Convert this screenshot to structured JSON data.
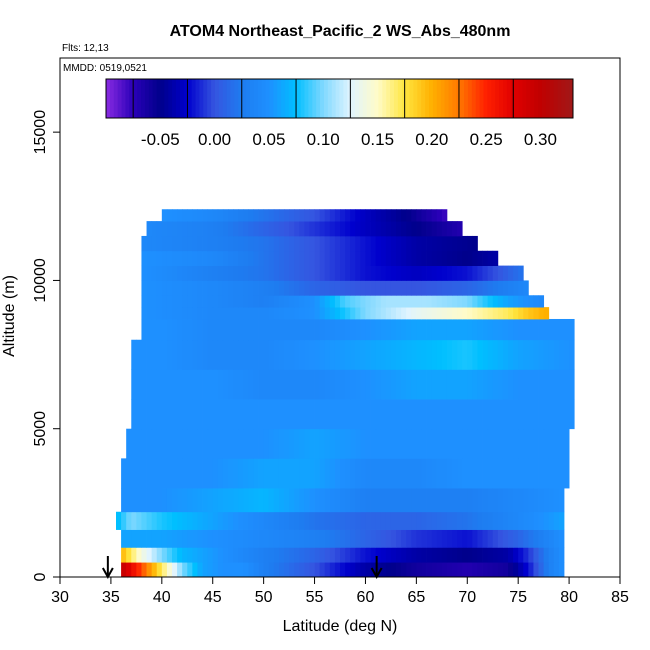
{
  "chart_data": {
    "type": "heatmap",
    "title": "ATOM4 Northeast_Pacific_2 WS_Abs_480nm",
    "subtitle_flights": "Flts: 12,13",
    "subtitle_dates": "MMDD: 0519,0521",
    "xlabel": "Latitude (deg N)",
    "ylabel": "Altitude (m)",
    "xlim": [
      30,
      85
    ],
    "ylim": [
      0,
      17500
    ],
    "x_ticks": [
      "30",
      "35",
      "40",
      "45",
      "50",
      "55",
      "60",
      "65",
      "70",
      "75",
      "80",
      "85"
    ],
    "y_ticks": [
      "0",
      "5000",
      "10000",
      "15000"
    ],
    "colorbar": {
      "range": [
        -0.1,
        0.33
      ],
      "tick_labels": [
        "-0.05",
        "0.00",
        "0.05",
        "0.10",
        "0.15",
        "0.20",
        "0.25",
        "0.30"
      ],
      "tick_values": [
        -0.05,
        0.0,
        0.05,
        0.1,
        0.15,
        0.2,
        0.25,
        0.3
      ]
    },
    "arrows_lat": [
      34.7,
      61.1
    ],
    "altitude_bins": [
      {
        "alt_range": [
          0,
          500
        ],
        "lat_range": [
          36,
          79.5
        ],
        "lats": [
          36,
          38,
          40,
          42,
          44,
          46,
          48,
          50,
          55,
          60,
          65,
          70,
          74,
          76,
          78,
          79.5
        ],
        "values": [
          0.3,
          0.24,
          0.17,
          0.1,
          0.06,
          0.05,
          0.05,
          0.03,
          0.0,
          -0.04,
          -0.06,
          -0.07,
          -0.06,
          -0.02,
          0.03,
          0.05
        ]
      },
      {
        "alt_range": [
          500,
          1000
        ],
        "lat_range": [
          36,
          79.5
        ],
        "lats": [
          36,
          38,
          40,
          42,
          44,
          46,
          50,
          55,
          60,
          65,
          70,
          74,
          76,
          78,
          79.5
        ],
        "values": [
          0.2,
          0.14,
          0.1,
          0.07,
          0.06,
          0.05,
          0.03,
          0.01,
          -0.02,
          -0.04,
          -0.05,
          -0.04,
          -0.01,
          0.03,
          0.05
        ]
      },
      {
        "alt_range": [
          1000,
          1600
        ],
        "lat_range": [
          36,
          79.5
        ],
        "lats": [
          36,
          40,
          45,
          50,
          55,
          60,
          65,
          70,
          75,
          79.5
        ],
        "values": [
          0.06,
          0.06,
          0.05,
          0.04,
          0.03,
          0.01,
          -0.01,
          -0.02,
          0.01,
          0.05
        ]
      },
      {
        "alt_range": [
          1600,
          2200
        ],
        "lat_range": [
          35.5,
          79.5
        ],
        "lats": [
          35.5,
          37,
          40,
          45,
          50,
          55,
          60,
          65,
          70,
          75,
          79.5
        ],
        "values": [
          0.07,
          0.1,
          0.08,
          0.06,
          0.04,
          0.02,
          0.01,
          0.01,
          0.02,
          0.04,
          0.06
        ]
      },
      {
        "alt_range": [
          2200,
          3000
        ],
        "lat_range": [
          36,
          79.5
        ],
        "lats": [
          36,
          40,
          45,
          50,
          55,
          60,
          65,
          70,
          75,
          79.5
        ],
        "values": [
          0.05,
          0.05,
          0.06,
          0.07,
          0.05,
          0.03,
          0.03,
          0.03,
          0.04,
          0.05
        ]
      },
      {
        "alt_range": [
          3000,
          4000
        ],
        "lat_range": [
          36,
          80
        ],
        "lats": [
          36,
          40,
          45,
          50,
          55,
          60,
          65,
          70,
          75,
          80
        ],
        "values": [
          0.05,
          0.05,
          0.05,
          0.06,
          0.06,
          0.04,
          0.04,
          0.05,
          0.05,
          0.05
        ]
      },
      {
        "alt_range": [
          4000,
          5000
        ],
        "lat_range": [
          36.5,
          80
        ],
        "lats": [
          36.5,
          40,
          45,
          50,
          55,
          60,
          65,
          70,
          75,
          80
        ],
        "values": [
          0.05,
          0.05,
          0.05,
          0.05,
          0.06,
          0.05,
          0.05,
          0.05,
          0.05,
          0.05
        ]
      },
      {
        "alt_range": [
          5000,
          6000
        ],
        "lat_range": [
          37,
          80.5
        ],
        "lats": [
          37,
          40,
          45,
          50,
          55,
          60,
          65,
          70,
          75,
          80.5
        ],
        "values": [
          0.05,
          0.05,
          0.05,
          0.05,
          0.05,
          0.05,
          0.05,
          0.05,
          0.05,
          0.05
        ]
      },
      {
        "alt_range": [
          6000,
          7000
        ],
        "lat_range": [
          37,
          80.5
        ],
        "lats": [
          37,
          40,
          45,
          50,
          55,
          60,
          65,
          70,
          75,
          80.5
        ],
        "values": [
          0.05,
          0.05,
          0.05,
          0.04,
          0.04,
          0.05,
          0.06,
          0.06,
          0.05,
          0.05
        ]
      },
      {
        "alt_range": [
          7000,
          8000
        ],
        "lat_range": [
          37,
          80.5
        ],
        "lats": [
          37,
          40,
          45,
          50,
          55,
          60,
          65,
          70,
          75,
          80.5
        ],
        "values": [
          0.05,
          0.05,
          0.04,
          0.04,
          0.05,
          0.06,
          0.07,
          0.08,
          0.06,
          0.05
        ]
      },
      {
        "alt_range": [
          8000,
          8700
        ],
        "lat_range": [
          38,
          80.5
        ],
        "lats": [
          38,
          40,
          45,
          50,
          55,
          60,
          65,
          70,
          75,
          80.5
        ],
        "values": [
          0.05,
          0.05,
          0.04,
          0.04,
          0.04,
          0.05,
          0.06,
          0.06,
          0.05,
          0.05
        ]
      },
      {
        "alt_range": [
          8700,
          9100
        ],
        "lat_range": [
          38,
          78
        ],
        "lats": [
          38,
          45,
          50,
          55,
          60,
          65,
          70,
          74,
          76,
          77.5
        ],
        "values": [
          0.05,
          0.04,
          0.04,
          0.05,
          0.1,
          0.13,
          0.15,
          0.17,
          0.19,
          0.2
        ]
      },
      {
        "alt_range": [
          9100,
          9500
        ],
        "lat_range": [
          38,
          77.5
        ],
        "lats": [
          38,
          45,
          50,
          55,
          58,
          62,
          66,
          70,
          74,
          77.5
        ],
        "values": [
          0.05,
          0.04,
          0.03,
          0.05,
          0.09,
          0.11,
          0.11,
          0.1,
          0.06,
          0.04
        ]
      },
      {
        "alt_range": [
          9500,
          10000
        ],
        "lat_range": [
          38,
          76
        ],
        "lats": [
          38,
          45,
          50,
          55,
          60,
          65,
          70,
          74,
          76
        ],
        "values": [
          0.05,
          0.04,
          0.03,
          0.01,
          0.0,
          0.0,
          0.01,
          0.03,
          0.04
        ]
      },
      {
        "alt_range": [
          10000,
          10500
        ],
        "lat_range": [
          38,
          75.5
        ],
        "lats": [
          38,
          45,
          50,
          55,
          60,
          65,
          70,
          73,
          75.5
        ],
        "values": [
          0.05,
          0.03,
          0.02,
          0.0,
          -0.02,
          -0.03,
          -0.02,
          0.0,
          0.02
        ]
      },
      {
        "alt_range": [
          10500,
          11000
        ],
        "lat_range": [
          38,
          73
        ],
        "lats": [
          38,
          45,
          50,
          55,
          60,
          65,
          70,
          73
        ],
        "values": [
          0.05,
          0.04,
          0.02,
          0.0,
          -0.02,
          -0.04,
          -0.05,
          -0.04
        ]
      },
      {
        "alt_range": [
          11000,
          11500
        ],
        "lat_range": [
          38,
          71
        ],
        "lats": [
          38,
          45,
          50,
          55,
          60,
          65,
          71
        ],
        "values": [
          0.04,
          0.03,
          0.02,
          0.0,
          -0.02,
          -0.04,
          -0.05
        ]
      },
      {
        "alt_range": [
          11500,
          12000
        ],
        "lat_range": [
          38.5,
          69.5
        ],
        "lats": [
          38.5,
          45,
          50,
          55,
          60,
          65,
          69.5
        ],
        "values": [
          0.04,
          0.03,
          0.01,
          -0.01,
          -0.03,
          -0.05,
          -0.07
        ]
      },
      {
        "alt_range": [
          12000,
          12400
        ],
        "lat_range": [
          40,
          68
        ],
        "lats": [
          40,
          45,
          50,
          55,
          60,
          64,
          68
        ],
        "values": [
          0.05,
          0.04,
          0.02,
          0.0,
          -0.03,
          -0.05,
          -0.08
        ]
      }
    ]
  }
}
